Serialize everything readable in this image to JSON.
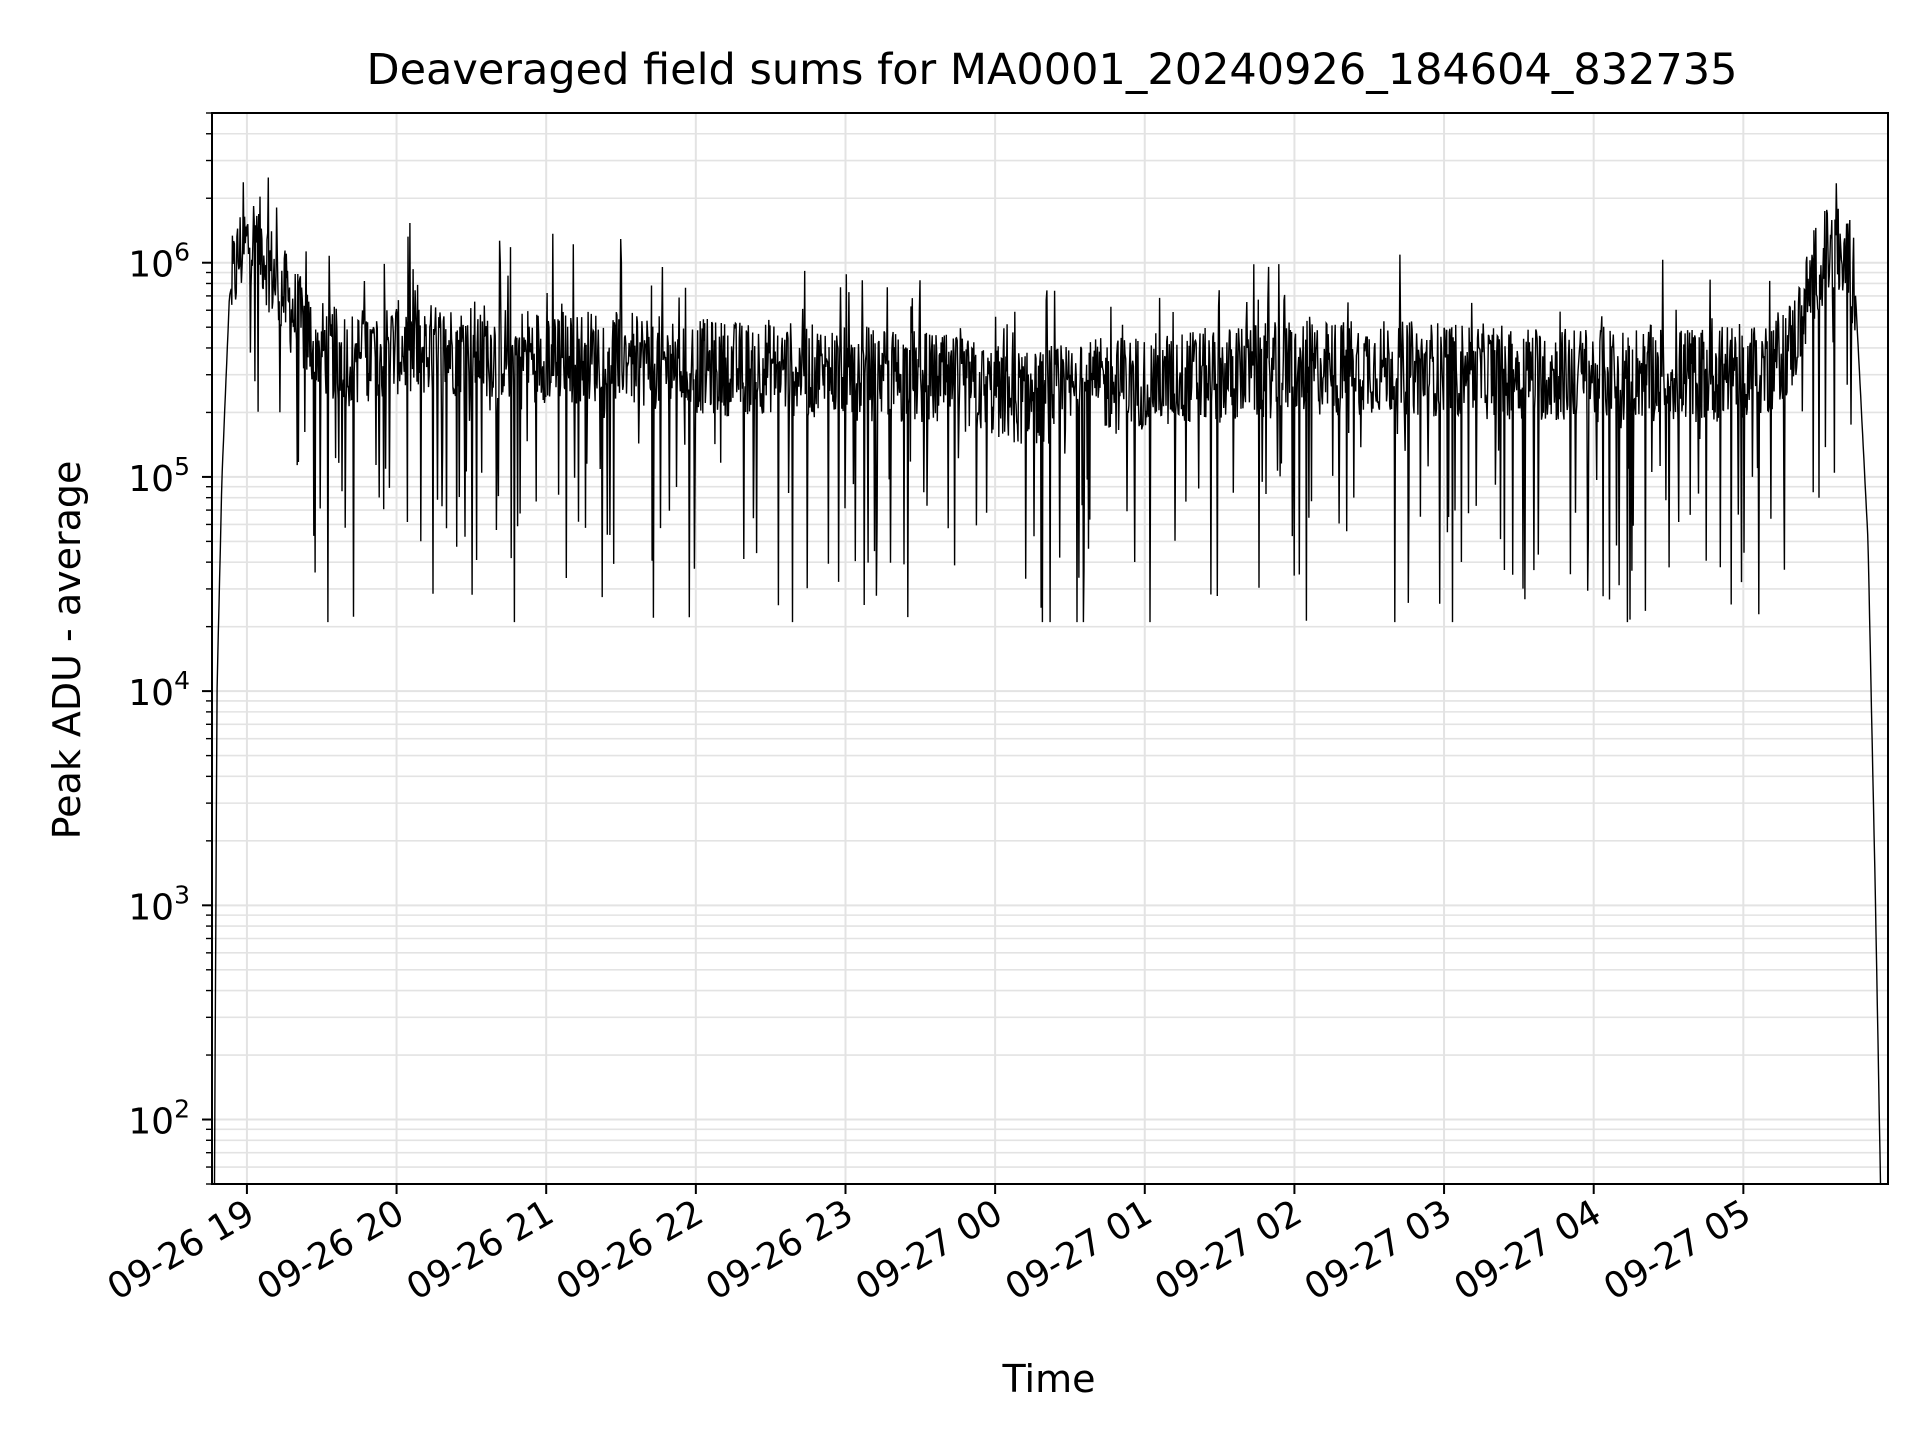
{
  "chart_data": {
    "type": "line",
    "title": "Deaveraged field sums for MA0001_20240926_184604_832735",
    "xlabel": "Time",
    "ylabel": "Peak ADU - average",
    "yscale": "log",
    "ylim": [
      50,
      5000000
    ],
    "xlim": [
      "2024-09-26 18:46",
      "2024-09-27 05:58"
    ],
    "grid": "major and minor",
    "x_ticks": [
      {
        "value": "2024-09-26 19:00",
        "label": "09-26 19"
      },
      {
        "value": "2024-09-26 20:00",
        "label": "09-26 20"
      },
      {
        "value": "2024-09-26 21:00",
        "label": "09-26 21"
      },
      {
        "value": "2024-09-26 22:00",
        "label": "09-26 22"
      },
      {
        "value": "2024-09-26 23:00",
        "label": "09-26 23"
      },
      {
        "value": "2024-09-27 00:00",
        "label": "09-27 00"
      },
      {
        "value": "2024-09-27 01:00",
        "label": "09-27 01"
      },
      {
        "value": "2024-09-27 02:00",
        "label": "09-27 02"
      },
      {
        "value": "2024-09-27 03:00",
        "label": "09-27 03"
      },
      {
        "value": "2024-09-27 04:00",
        "label": "09-27 04"
      },
      {
        "value": "2024-09-27 05:00",
        "label": "09-27 05"
      }
    ],
    "y_ticks": [
      {
        "value": 100,
        "base": "10",
        "exp": "2"
      },
      {
        "value": 1000,
        "base": "10",
        "exp": "3"
      },
      {
        "value": 10000,
        "base": "10",
        "exp": "4"
      },
      {
        "value": 100000,
        "base": "10",
        "exp": "5"
      },
      {
        "value": 1000000,
        "base": "10",
        "exp": "6"
      }
    ],
    "series": [
      {
        "color": "#000000",
        "x": [
          "2024-09-26 18:47",
          "2024-09-26 18:48",
          "2024-09-26 18:50",
          "2024-09-26 18:53",
          "2024-09-26 18:57",
          "2024-09-26 19:02",
          "2024-09-26 19:06",
          "2024-09-26 19:10",
          "2024-09-26 19:15",
          "2024-09-26 19:20",
          "2024-09-26 19:25",
          "2024-09-26 19:30",
          "2024-09-26 19:40",
          "2024-09-26 19:50",
          "2024-09-26 20:00",
          "2024-09-26 20:15",
          "2024-09-26 20:30",
          "2024-09-26 20:45",
          "2024-09-26 21:00",
          "2024-09-26 21:15",
          "2024-09-26 21:30",
          "2024-09-26 21:45",
          "2024-09-26 22:00",
          "2024-09-26 22:15",
          "2024-09-26 22:30",
          "2024-09-26 22:45",
          "2024-09-26 23:00",
          "2024-09-26 23:15",
          "2024-09-26 23:30",
          "2024-09-26 23:45",
          "2024-09-27 00:00",
          "2024-09-27 00:15",
          "2024-09-27 00:30",
          "2024-09-27 00:45",
          "2024-09-27 01:00",
          "2024-09-27 01:15",
          "2024-09-27 01:30",
          "2024-09-27 01:45",
          "2024-09-27 02:00",
          "2024-09-27 02:15",
          "2024-09-27 02:30",
          "2024-09-27 02:45",
          "2024-09-27 03:00",
          "2024-09-27 03:15",
          "2024-09-27 03:30",
          "2024-09-27 03:45",
          "2024-09-27 04:00",
          "2024-09-27 04:15",
          "2024-09-27 04:30",
          "2024-09-27 04:45",
          "2024-09-27 05:00",
          "2024-09-27 05:10",
          "2024-09-27 05:20",
          "2024-09-27 05:25",
          "2024-09-27 05:30",
          "2024-09-27 05:35",
          "2024-09-27 05:40",
          "2024-09-27 05:45",
          "2024-09-27 05:50",
          "2024-09-27 05:53",
          "2024-09-27 05:55"
        ],
        "y": [
          50,
          10000,
          100000,
          700000,
          1100000,
          1300000,
          1200000,
          900000,
          700000,
          550000,
          450000,
          400000,
          350000,
          380000,
          400000,
          390000,
          400000,
          380000,
          370000,
          360000,
          380000,
          340000,
          330000,
          320000,
          330000,
          310000,
          310000,
          300000,
          290000,
          270000,
          250000,
          230000,
          250000,
          270000,
          280000,
          290000,
          300000,
          310000,
          320000,
          320000,
          330000,
          320000,
          320000,
          310000,
          310000,
          300000,
          300000,
          310000,
          300000,
          300000,
          310000,
          330000,
          420000,
          650000,
          1000000,
          1100000,
          1100000,
          700000,
          50000,
          1000,
          50
        ],
        "spike_max": 3000000,
        "spike_min": 21000
      }
    ]
  }
}
